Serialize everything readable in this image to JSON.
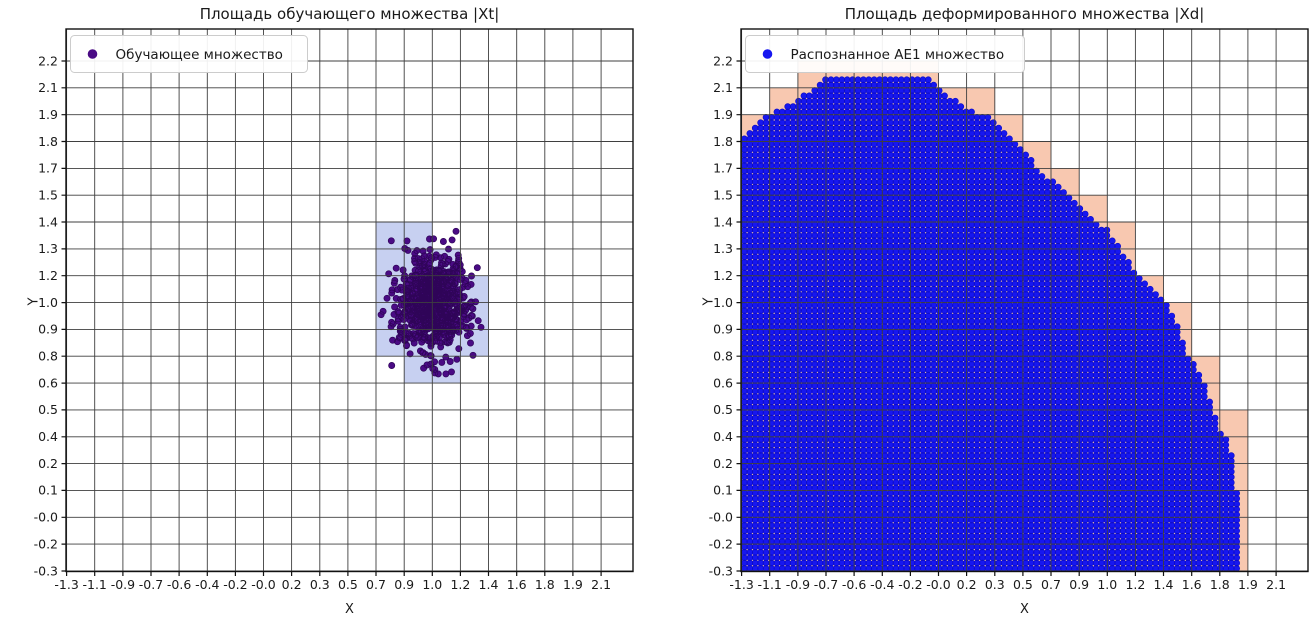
{
  "figure": {
    "background": "#ffffff"
  },
  "colors": {
    "grid_line": "#3f3f3f",
    "spine": "#111111",
    "tick_text": "#1a1a1a",
    "legend_border": "#cccccc",
    "train_point_fill": "#4a0b85",
    "train_point_edge": "#2f0458",
    "train_cell_fill": "#c7d0f1",
    "recognized_dot_fill": "#1717f0",
    "recognized_dot_edge": "#0c0cc4",
    "recognized_cell_fill": "#f8c8b0"
  },
  "chart_data": [
    {
      "type": "scatter",
      "panel": "left",
      "title": "Площадь обучающего множества |Xt|",
      "xlabel": "X",
      "ylabel": "Y",
      "grid": true,
      "legend_position": "upper left",
      "x_tick_labels": [
        "-1.3",
        "-1.1",
        "-0.9",
        "-0.7",
        "-0.6",
        "-0.4",
        "-0.2",
        "-0.0",
        "0.2",
        "0.3",
        "0.5",
        "0.7",
        "0.9",
        "1.0",
        "1.2",
        "1.4",
        "1.6",
        "1.8",
        "1.9",
        "2.1"
      ],
      "y_tick_labels": [
        "2.2",
        "2.1",
        "1.9",
        "1.8",
        "1.7",
        "1.5",
        "1.4",
        "1.3",
        "1.2",
        "1.0",
        "0.9",
        "0.8",
        "0.6",
        "0.5",
        "0.4",
        "0.2",
        "0.1",
        "-0.0",
        "-0.2",
        "-0.3"
      ],
      "series": [
        {
          "name": "Обучающее множество",
          "marker": "circle",
          "color": "#4a0b85",
          "distribution": {
            "kind": "gaussian-cluster",
            "center": [
              1.0,
              1.0
            ],
            "std": [
              0.105,
              0.12
            ],
            "n": 850,
            "seed": 12
          }
        }
      ],
      "highlight_cells": {
        "color": "#c7d0f1",
        "indexing": "x-tick-column, y-tick-row-from-top",
        "cells": [
          [
            11,
            6
          ],
          [
            12,
            6
          ],
          [
            11,
            7
          ],
          [
            12,
            7
          ],
          [
            13,
            7
          ],
          [
            11,
            8
          ],
          [
            12,
            8
          ],
          [
            13,
            8
          ],
          [
            14,
            8
          ],
          [
            11,
            9
          ],
          [
            12,
            9
          ],
          [
            13,
            9
          ],
          [
            14,
            9
          ],
          [
            11,
            10
          ],
          [
            12,
            10
          ],
          [
            13,
            10
          ],
          [
            14,
            10
          ],
          [
            12,
            11
          ],
          [
            13,
            11
          ]
        ]
      }
    },
    {
      "type": "scatter",
      "panel": "right",
      "title": "Площадь деформированного множества |Xd|",
      "xlabel": "X",
      "ylabel": "Y",
      "grid": true,
      "legend_position": "upper left",
      "x_tick_labels": [
        "-1.3",
        "-1.1",
        "-0.9",
        "-0.7",
        "-0.6",
        "-0.4",
        "-0.2",
        "-0.0",
        "0.2",
        "0.3",
        "0.5",
        "0.7",
        "0.9",
        "1.0",
        "1.2",
        "1.4",
        "1.6",
        "1.8",
        "1.9",
        "2.1"
      ],
      "y_tick_labels": [
        "2.2",
        "2.1",
        "1.9",
        "1.8",
        "1.7",
        "1.5",
        "1.4",
        "1.3",
        "1.2",
        "1.0",
        "0.9",
        "0.8",
        "0.6",
        "0.5",
        "0.4",
        "0.2",
        "0.1",
        "-0.0",
        "-0.2",
        "-0.3"
      ],
      "series": [
        {
          "name": "Распознанное АЕ1 множество",
          "marker": "circle",
          "color": "#1717f0",
          "distribution": {
            "kind": "uniform-dot-grid",
            "pitch_cells": [
              0.1923,
              0.2
            ],
            "region_polygon": [
              [
                -1.3,
                -0.31
              ],
              [
                -1.3,
                1.82
              ],
              [
                -1.15,
                1.88
              ],
              [
                -0.95,
                1.99
              ],
              [
                -0.69,
                2.14
              ],
              [
                -0.31,
                2.14
              ],
              [
                -0.06,
                2.13
              ],
              [
                0.25,
                1.91
              ],
              [
                0.5,
                1.78
              ],
              [
                0.69,
                1.62
              ],
              [
                0.76,
                1.57
              ],
              [
                0.95,
                1.41
              ],
              [
                1.13,
                1.27
              ],
              [
                1.35,
                1.08
              ],
              [
                1.51,
                0.91
              ],
              [
                1.63,
                0.72
              ],
              [
                1.83,
                0.37
              ],
              [
                1.87,
                0.0
              ],
              [
                1.87,
                -0.31
              ]
            ]
          }
        }
      ],
      "highlight_cells": {
        "color": "#f8c8b0",
        "indexing": "auto: every grid cell containing at least one recognized point",
        "cells": "auto"
      }
    }
  ]
}
